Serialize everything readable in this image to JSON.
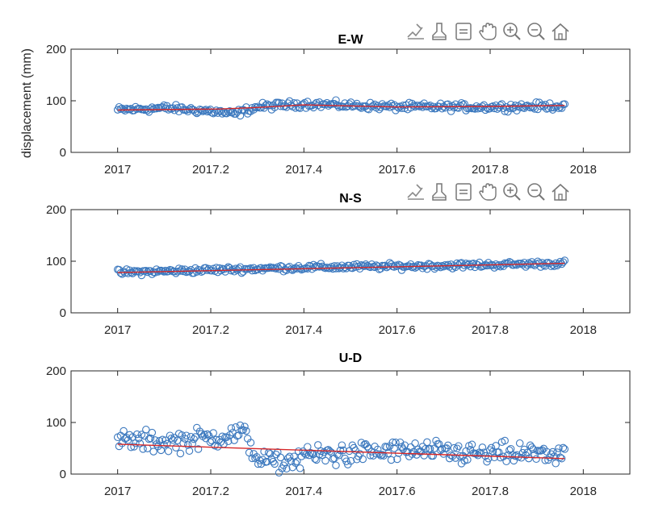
{
  "chart_data": [
    {
      "type": "scatter",
      "title": "E-W",
      "ylabel": "displacement (mm)",
      "xlabel": "",
      "xlim": [
        2016.9,
        2018.1
      ],
      "ylim": [
        0,
        200
      ],
      "xticks": [
        "2017",
        "2017.2",
        "2017.4",
        "2017.6",
        "2017.8",
        "2018"
      ],
      "yticks": [
        "0",
        "100",
        "200"
      ],
      "marker": "open-circle",
      "marker_color": "#3b78be",
      "trend_color": "#d62728",
      "x_range": [
        2017.0,
        2017.96
      ],
      "trend": [
        {
          "x": 2017.0,
          "y": 82
        },
        {
          "x": 2017.22,
          "y": 84
        },
        {
          "x": 2017.3,
          "y": 87
        },
        {
          "x": 2017.4,
          "y": 92
        },
        {
          "x": 2017.6,
          "y": 88
        },
        {
          "x": 2017.8,
          "y": 89
        },
        {
          "x": 2017.96,
          "y": 91
        }
      ],
      "scatter_envelope": [
        {
          "x": 2017.0,
          "y": 82
        },
        {
          "x": 2017.1,
          "y": 86
        },
        {
          "x": 2017.2,
          "y": 80
        },
        {
          "x": 2017.25,
          "y": 74
        },
        {
          "x": 2017.3,
          "y": 88
        },
        {
          "x": 2017.4,
          "y": 94
        },
        {
          "x": 2017.6,
          "y": 88
        },
        {
          "x": 2017.8,
          "y": 88
        },
        {
          "x": 2017.96,
          "y": 90
        }
      ],
      "scatter_spread": 6
    },
    {
      "type": "scatter",
      "title": "N-S",
      "ylabel": "",
      "xlabel": "",
      "xlim": [
        2016.9,
        2018.1
      ],
      "ylim": [
        0,
        200
      ],
      "xticks": [
        "2017",
        "2017.2",
        "2017.4",
        "2017.6",
        "2017.8",
        "2018"
      ],
      "yticks": [
        "0",
        "100",
        "200"
      ],
      "marker": "open-circle",
      "marker_color": "#3b78be",
      "trend_color": "#d62728",
      "x_range": [
        2017.0,
        2017.96
      ],
      "trend": [
        {
          "x": 2017.0,
          "y": 78
        },
        {
          "x": 2017.96,
          "y": 96
        }
      ],
      "scatter_envelope": [
        {
          "x": 2017.0,
          "y": 78
        },
        {
          "x": 2017.2,
          "y": 83
        },
        {
          "x": 2017.4,
          "y": 88
        },
        {
          "x": 2017.6,
          "y": 90
        },
        {
          "x": 2017.8,
          "y": 93
        },
        {
          "x": 2017.96,
          "y": 96
        }
      ],
      "scatter_spread": 5
    },
    {
      "type": "scatter",
      "title": "U-D",
      "ylabel": "",
      "xlabel": "",
      "xlim": [
        2016.9,
        2018.1
      ],
      "ylim": [
        0,
        200
      ],
      "xticks": [
        "2017",
        "2017.2",
        "2017.4",
        "2017.6",
        "2017.8",
        "2018"
      ],
      "yticks": [
        "0",
        "100",
        "200"
      ],
      "marker": "open-circle",
      "marker_color": "#3b78be",
      "trend_color": "#d62728",
      "x_range": [
        2017.0,
        2017.96
      ],
      "trend": [
        {
          "x": 2017.0,
          "y": 58
        },
        {
          "x": 2017.96,
          "y": 30
        }
      ],
      "scatter_envelope": [
        {
          "x": 2017.0,
          "y": 65
        },
        {
          "x": 2017.1,
          "y": 62
        },
        {
          "x": 2017.2,
          "y": 70
        },
        {
          "x": 2017.27,
          "y": 80
        },
        {
          "x": 2017.3,
          "y": 30
        },
        {
          "x": 2017.35,
          "y": 20
        },
        {
          "x": 2017.4,
          "y": 35
        },
        {
          "x": 2017.5,
          "y": 40
        },
        {
          "x": 2017.6,
          "y": 45
        },
        {
          "x": 2017.7,
          "y": 42
        },
        {
          "x": 2017.8,
          "y": 38
        },
        {
          "x": 2017.96,
          "y": 40
        }
      ],
      "scatter_spread": 18
    }
  ],
  "toolbar": {
    "icons": [
      "brush-icon",
      "data-cursor-icon",
      "legend-icon",
      "pan-icon",
      "zoom-in-icon",
      "zoom-out-icon",
      "home-icon"
    ]
  }
}
